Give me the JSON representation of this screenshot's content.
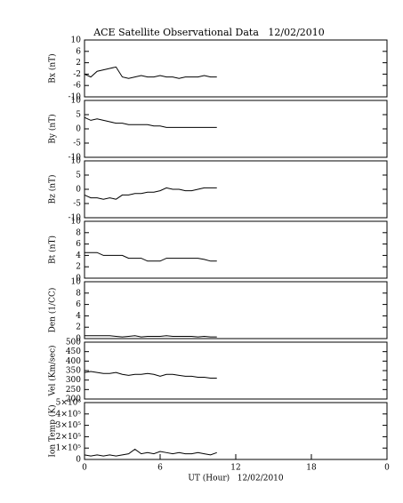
{
  "chart_data": [
    {
      "type": "line",
      "title": "ACE Satellite Observational Data   12/02/2010",
      "ylabel": "Bx (nT)",
      "color": "#000000",
      "x": [
        0,
        0.5,
        1,
        1.5,
        2,
        2.5,
        3,
        3.5,
        4,
        4.5,
        5,
        5.5,
        6,
        6.5,
        7,
        7.5,
        8,
        8.5,
        9,
        9.5,
        10,
        10.5
      ],
      "values": [
        -2,
        -3,
        -1,
        -0.5,
        0,
        0.5,
        -3,
        -3.5,
        -3,
        -2.5,
        -3,
        -3,
        -2.5,
        -3,
        -3,
        -3.5,
        -3,
        -3,
        -3,
        -2.5,
        -3,
        -3
      ],
      "xlim": [
        0,
        24
      ],
      "ylim": [
        -10,
        10
      ],
      "yticks": [
        -10,
        -6,
        -2,
        2,
        6,
        10
      ]
    },
    {
      "type": "line",
      "ylabel": "By (nT)",
      "color": "#000000",
      "x": [
        0,
        0.5,
        1,
        1.5,
        2,
        2.5,
        3,
        3.5,
        4,
        4.5,
        5,
        5.5,
        6,
        6.5,
        7,
        7.5,
        8,
        8.5,
        9,
        9.5,
        10,
        10.5
      ],
      "values": [
        4,
        3,
        3.5,
        3,
        2.5,
        2,
        2,
        1.5,
        1.5,
        1.5,
        1.5,
        1,
        1,
        0.5,
        0.5,
        0.5,
        0.5,
        0.5,
        0.5,
        0.5,
        0.5,
        0.5
      ],
      "xlim": [
        0,
        24
      ],
      "ylim": [
        -10,
        10
      ],
      "yticks": [
        -10,
        -5,
        0,
        5,
        10
      ]
    },
    {
      "type": "line",
      "ylabel": "Bz (nT)",
      "color": "#000000",
      "x": [
        0,
        0.5,
        1,
        1.5,
        2,
        2.5,
        3,
        3.5,
        4,
        4.5,
        5,
        5.5,
        6,
        6.5,
        7,
        7.5,
        8,
        8.5,
        9,
        9.5,
        10,
        10.5
      ],
      "values": [
        -2,
        -3,
        -3,
        -3.5,
        -3,
        -3.5,
        -2,
        -2,
        -1.5,
        -1.5,
        -1,
        -1,
        -0.5,
        0.5,
        0,
        0,
        -0.5,
        -0.5,
        0,
        0.5,
        0.5,
        0.5
      ],
      "xlim": [
        0,
        24
      ],
      "ylim": [
        -10,
        10
      ],
      "yticks": [
        -10,
        -5,
        0,
        5,
        10
      ]
    },
    {
      "type": "line",
      "ylabel": "Bt (nT)",
      "color": "#000000",
      "x": [
        0,
        0.5,
        1,
        1.5,
        2,
        2.5,
        3,
        3.5,
        4,
        4.5,
        5,
        5.5,
        6,
        6.5,
        7,
        7.5,
        8,
        8.5,
        9,
        9.5,
        10,
        10.5
      ],
      "values": [
        4.5,
        4.5,
        4.5,
        4,
        4,
        4,
        4,
        3.5,
        3.5,
        3.5,
        3,
        3,
        3,
        3.5,
        3.5,
        3.5,
        3.5,
        3.5,
        3.5,
        3.3,
        3,
        3
      ],
      "xlim": [
        0,
        24
      ],
      "ylim": [
        0,
        10
      ],
      "yticks": [
        0,
        2,
        4,
        6,
        8,
        10
      ]
    },
    {
      "type": "line",
      "ylabel": "Den (1/CC)",
      "color": "#000000",
      "x": [
        0,
        0.5,
        1,
        1.5,
        2,
        2.5,
        3,
        3.5,
        4,
        4.5,
        5,
        5.5,
        6,
        6.5,
        7,
        7.5,
        8,
        8.5,
        9,
        9.5,
        10,
        10.5
      ],
      "values": [
        0.5,
        0.5,
        0.5,
        0.5,
        0.5,
        0.4,
        0.3,
        0.4,
        0.5,
        0.3,
        0.4,
        0.4,
        0.4,
        0.5,
        0.4,
        0.4,
        0.4,
        0.4,
        0.3,
        0.4,
        0.3,
        0.3
      ],
      "xlim": [
        0,
        24
      ],
      "ylim": [
        0,
        10
      ],
      "yticks": [
        0,
        2,
        4,
        6,
        8,
        10
      ]
    },
    {
      "type": "line",
      "ylabel": "Vel (Km/sec)",
      "color": "#000000",
      "x": [
        0,
        0.5,
        1,
        1.5,
        2,
        2.5,
        3,
        3.5,
        4,
        4.5,
        5,
        5.5,
        6,
        6.5,
        7,
        7.5,
        8,
        8.5,
        9,
        9.5,
        10,
        10.5
      ],
      "values": [
        340,
        345,
        340,
        335,
        335,
        340,
        330,
        325,
        330,
        330,
        335,
        330,
        320,
        330,
        330,
        325,
        320,
        320,
        315,
        315,
        310,
        310
      ],
      "xlim": [
        0,
        24
      ],
      "ylim": [
        200,
        500
      ],
      "yticks": [
        200,
        250,
        300,
        350,
        400,
        450,
        500
      ]
    },
    {
      "type": "line",
      "ylabel": "Ion Temp (K)",
      "xlabel": "UT (Hour)   12/02/2010",
      "color": "#000000",
      "x": [
        0,
        0.5,
        1,
        1.5,
        2,
        2.5,
        3,
        3.5,
        4,
        4.5,
        5,
        5.5,
        6,
        6.5,
        7,
        7.5,
        8,
        8.5,
        9,
        9.5,
        10,
        10.5
      ],
      "values": [
        40000,
        30000,
        40000,
        30000,
        40000,
        30000,
        40000,
        50000,
        90000,
        50000,
        60000,
        50000,
        70000,
        60000,
        50000,
        60000,
        50000,
        50000,
        60000,
        50000,
        40000,
        60000
      ],
      "xlim": [
        0,
        24
      ],
      "ylim": [
        0,
        500000
      ],
      "yticks": [
        0,
        {
          "value": 100000,
          "label": "1×10⁵"
        },
        {
          "value": 200000,
          "label": "2×10⁵"
        },
        {
          "value": 300000,
          "label": "3×10⁵"
        },
        {
          "value": 400000,
          "label": "4×10⁵"
        },
        {
          "value": 500000,
          "label": "5×10⁵"
        }
      ],
      "xticks": [
        0,
        6,
        12,
        18,
        {
          "value": 24,
          "label": "0"
        }
      ]
    }
  ]
}
